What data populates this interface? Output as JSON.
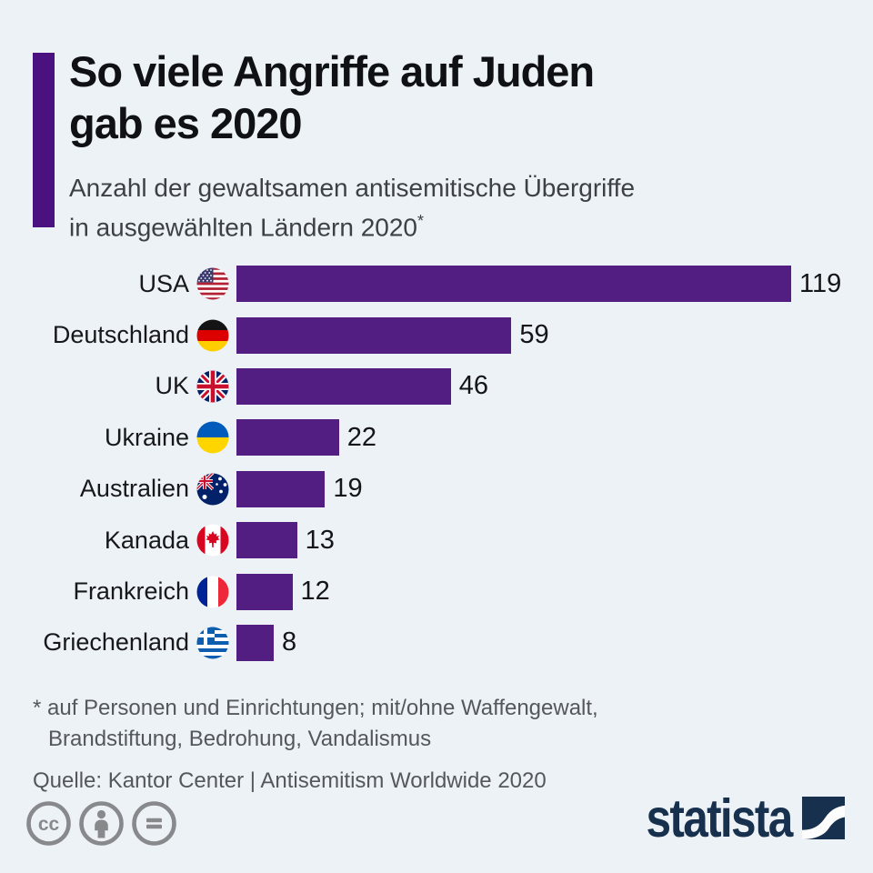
{
  "page": {
    "background": "#edf2f6"
  },
  "header": {
    "accent_color": "#4b1181",
    "title_line1": "So viele Angriffe auf Juden",
    "title_line2": "gab es 2020",
    "subtitle_line1": "Anzahl der gewaltsamen antisemitische Übergriffe",
    "subtitle_line2": "in ausgewählten Ländern 2020",
    "subtitle_footnote_marker": "*"
  },
  "chart_data": {
    "type": "bar",
    "orientation": "horizontal",
    "title": "Anzahl der gewaltsamen antisemitische Übergriffe in ausgewählten Ländern 2020",
    "categories": [
      "USA",
      "Deutschland",
      "UK",
      "Ukraine",
      "Australien",
      "Kanada",
      "Frankreich",
      "Griechenland"
    ],
    "values": [
      119,
      59,
      46,
      22,
      19,
      13,
      12,
      8
    ],
    "flags": [
      "us",
      "de",
      "uk",
      "ua",
      "au",
      "ca",
      "fr",
      "gr"
    ],
    "bar_color": "#521e82",
    "xmax": 119,
    "value_labels_shown": true,
    "axis_shown": false,
    "grid": false,
    "legend": false
  },
  "footer": {
    "footnote_line1": "* auf Personen und Einrichtungen; mit/ohne Waffengewalt,",
    "footnote_line2": "Brandstiftung, Bedrohung, Vandalismus",
    "source": "Quelle: Kantor Center | Antisemitism Worldwide 2020"
  },
  "branding": {
    "license_icons": [
      "cc",
      "attribution",
      "no-derivatives"
    ],
    "icon_color": "#87898c",
    "logo_text": "statista",
    "logo_color": "#17304e"
  }
}
